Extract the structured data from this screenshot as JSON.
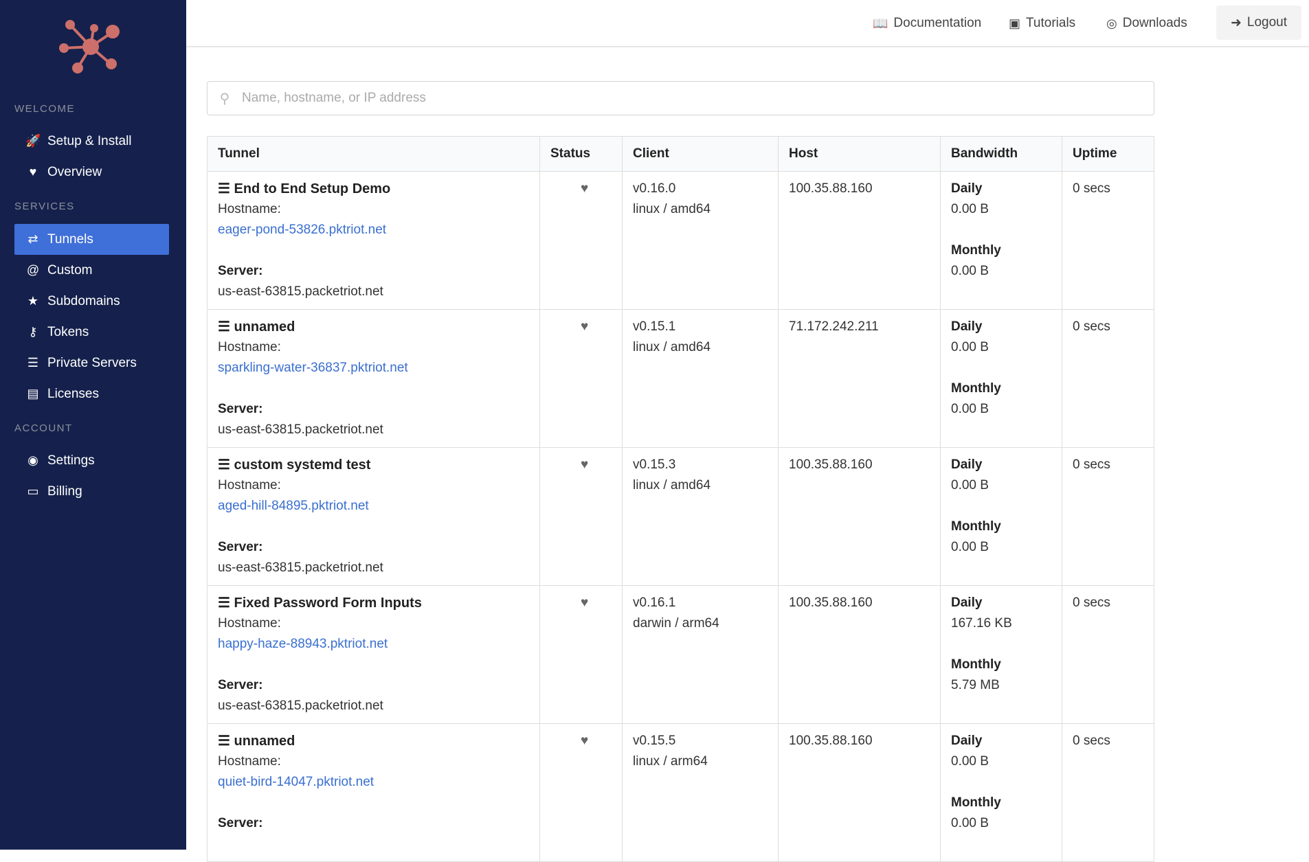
{
  "sidebar": {
    "sections": [
      "WELCOME",
      "SERVICES",
      "ACCOUNT"
    ],
    "items": [
      {
        "label": "Setup & Install",
        "icon": "rocket-icon"
      },
      {
        "label": "Overview",
        "icon": "heartbeat-icon"
      },
      {
        "label": "Tunnels",
        "icon": "exchange-icon",
        "active": true
      },
      {
        "label": "Custom",
        "icon": "at-icon"
      },
      {
        "label": "Subdomains",
        "icon": "star-icon"
      },
      {
        "label": "Tokens",
        "icon": "key-icon"
      },
      {
        "label": "Private Servers",
        "icon": "server-icon"
      },
      {
        "label": "Licenses",
        "icon": "file-icon"
      },
      {
        "label": "Settings",
        "icon": "user-circle-icon"
      },
      {
        "label": "Billing",
        "icon": "credit-card-icon"
      }
    ]
  },
  "topbar": {
    "documentation": "Documentation",
    "tutorials": "Tutorials",
    "downloads": "Downloads",
    "logout": "Logout"
  },
  "search": {
    "placeholder": "Name, hostname, or IP address"
  },
  "table": {
    "headers": [
      "Tunnel",
      "Status",
      "Client",
      "Host",
      "Bandwidth",
      "Uptime"
    ],
    "hostname_label": "Hostname:",
    "server_label": "Server:",
    "daily_label": "Daily",
    "monthly_label": "Monthly",
    "rows": [
      {
        "name": "End to End Setup Demo",
        "hostname": "eager-pond-53826.pktriot.net",
        "server": "us-east-63815.packetriot.net",
        "version": "v0.16.0",
        "platform": "linux / amd64",
        "host": "100.35.88.160",
        "daily": "0.00 B",
        "monthly": "0.00 B",
        "uptime": "0 secs"
      },
      {
        "name": "unnamed",
        "hostname": "sparkling-water-36837.pktriot.net",
        "server": "us-east-63815.packetriot.net",
        "version": "v0.15.1",
        "platform": "linux / amd64",
        "host": "71.172.242.211",
        "daily": "0.00 B",
        "monthly": "0.00 B",
        "uptime": "0 secs"
      },
      {
        "name": "custom systemd test",
        "hostname": "aged-hill-84895.pktriot.net",
        "server": "us-east-63815.packetriot.net",
        "version": "v0.15.3",
        "platform": "linux / amd64",
        "host": "100.35.88.160",
        "daily": "0.00 B",
        "monthly": "0.00 B",
        "uptime": "0 secs"
      },
      {
        "name": "Fixed Password Form Inputs",
        "hostname": "happy-haze-88943.pktriot.net",
        "server": "us-east-63815.packetriot.net",
        "version": "v0.16.1",
        "platform": "darwin / arm64",
        "host": "100.35.88.160",
        "daily": "167.16 KB",
        "monthly": "5.79 MB",
        "uptime": "0 secs"
      },
      {
        "name": "unnamed",
        "hostname": "quiet-bird-14047.pktriot.net",
        "server": "",
        "version": "v0.15.5",
        "platform": "linux / arm64",
        "host": "100.35.88.160",
        "daily": "0.00 B",
        "monthly": "0.00 B",
        "uptime": "0 secs"
      }
    ]
  },
  "colors": {
    "sidebar": "#15214c",
    "accent": "#3f6fd8",
    "logo": "#cd6f6a",
    "link": "#3a6fd0"
  }
}
